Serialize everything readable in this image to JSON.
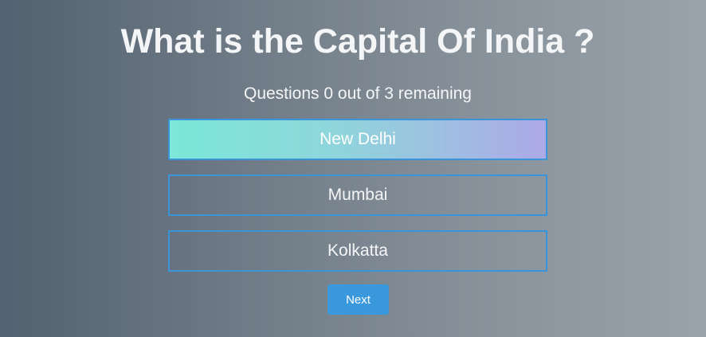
{
  "question": {
    "text": "What is the Capital Of India ?"
  },
  "status": {
    "remaining_text": "Questions 0 out of 3 remaining"
  },
  "options": [
    {
      "label": "New Delhi",
      "selected": true
    },
    {
      "label": "Mumbai",
      "selected": false
    },
    {
      "label": "Kolkatta",
      "selected": false
    }
  ],
  "actions": {
    "next_label": "Next"
  },
  "colors": {
    "accent": "#3a98dc",
    "option_border": "#3c94d8",
    "selected_gradient_start": "#7be8d9",
    "selected_gradient_end": "#ada9e7"
  }
}
